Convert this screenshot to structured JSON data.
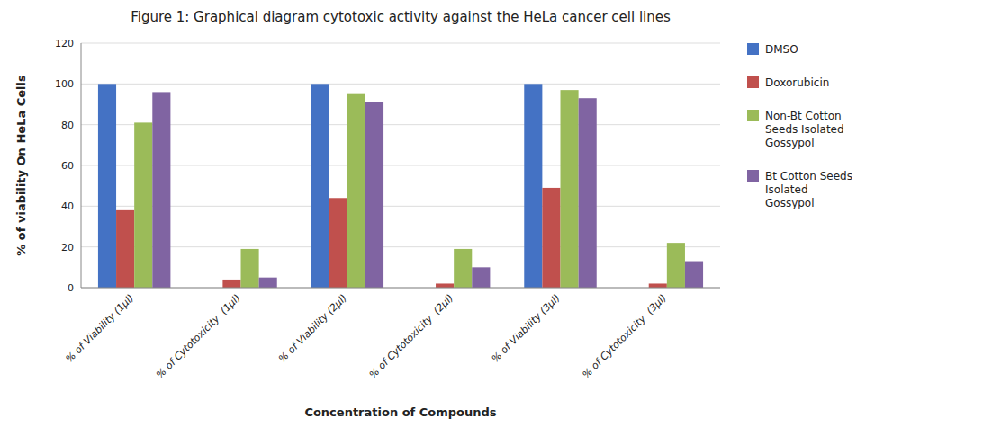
{
  "chart_data": {
    "type": "bar",
    "title": "Figure 1: Graphical diagram cytotoxic activity against the HeLa cancer cell lines",
    "xlabel": "Concentration of Compounds",
    "ylabel": "% of viability On HeLa Cells",
    "categories": [
      "% of Viability (1μl)",
      "% of Cytotoxicity  (1μl)",
      "% of Viability (2μl)",
      "% of Cytotoxicity  (2μl)",
      "% of Viability (3μl)",
      "% of Cytotoxicity  (3μl)"
    ],
    "series": [
      {
        "name": "DMSO",
        "color": "#4472C4",
        "values": [
          100,
          0,
          100,
          0,
          100,
          0
        ]
      },
      {
        "name": "Doxorubicin",
        "color": "#C0504D",
        "values": [
          38,
          4,
          44,
          2,
          49,
          2
        ]
      },
      {
        "name": "Non-Bt Cotton\nSeeds Isolated\nGossypol",
        "color": "#9BBB59",
        "values": [
          81,
          19,
          95,
          19,
          97,
          22
        ]
      },
      {
        "name": "Bt Cotton Seeds\nIsolated\nGossypol",
        "color": "#8064A2",
        "values": [
          96,
          5,
          91,
          10,
          93,
          13
        ]
      }
    ],
    "ylim": [
      0,
      120
    ],
    "yticks": [
      0,
      20,
      40,
      60,
      80,
      100,
      120
    ],
    "grid": true,
    "legend": "right"
  }
}
